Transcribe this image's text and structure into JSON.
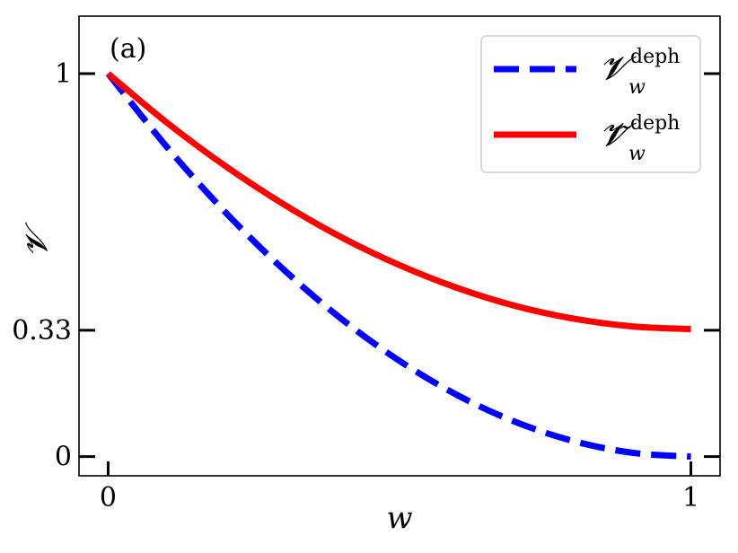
{
  "chart_data": {
    "type": "line",
    "panel_label": "(a)",
    "xlabel": "w",
    "ylabel": "𝓥",
    "xlim": [
      -0.05,
      1.05
    ],
    "ylim": [
      -0.05,
      1.15
    ],
    "x_ticks": [
      {
        "value": 0,
        "label": "0"
      },
      {
        "value": 1,
        "label": "1"
      }
    ],
    "y_ticks": [
      {
        "value": 0,
        "label": "0"
      },
      {
        "value": 0.33,
        "label": "0.33"
      },
      {
        "value": 1,
        "label": "1"
      }
    ],
    "legend_position": "top-right",
    "series": [
      {
        "name": "𝓥",
        "name_sup": "deph",
        "name_sub": "w",
        "style": "dashed",
        "color": "#0000ff",
        "x": [
          0,
          0.1,
          0.2,
          0.3,
          0.4,
          0.5,
          0.6,
          0.7,
          0.8,
          0.9,
          1.0
        ],
        "values": [
          1.0,
          0.81,
          0.64,
          0.49,
          0.36,
          0.25,
          0.16,
          0.09,
          0.04,
          0.01,
          0.0
        ]
      },
      {
        "name": "𝓥̃",
        "name_sup": "deph",
        "name_sub": "w",
        "style": "solid",
        "color": "#ff0000",
        "x": [
          0,
          0.1,
          0.2,
          0.3,
          0.4,
          0.5,
          0.6,
          0.7,
          0.8,
          0.9,
          1.0
        ],
        "values": [
          1.0,
          0.873,
          0.76,
          0.66,
          0.573,
          0.5,
          0.44,
          0.393,
          0.36,
          0.34,
          0.333
        ]
      }
    ]
  }
}
